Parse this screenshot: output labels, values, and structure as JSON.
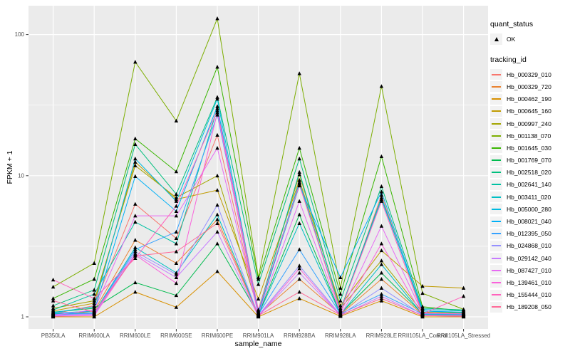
{
  "theme": {
    "background": "#FFFFFF",
    "panel_background": "#EBEBEB",
    "grid_color": "#FFFFFF",
    "tick_color": "#333333",
    "tick_label_color": "#4D4D4D",
    "marker_color": "#000000",
    "legend_key_background": "#F2F2F2"
  },
  "legend": {
    "quant_status": {
      "title": "quant_status",
      "items": [
        {
          "label": "OK",
          "marker": "triangle-up"
        }
      ]
    },
    "tracking_id": {
      "title": "tracking_id"
    }
  },
  "chart_data": {
    "type": "line",
    "title": "",
    "xlabel": "sample_name",
    "ylabel": "FPKM + 1",
    "y_scale": "log10",
    "y_ticks": [
      1,
      10,
      100
    ],
    "y_minor_ticks": [
      3.1623,
      31.623
    ],
    "ylim": [
      0.83,
      160
    ],
    "grid": true,
    "legend_position": "right",
    "marker": "triangle-up",
    "categories": [
      "PB350LA",
      "RRIM600LA",
      "RRIM600LE",
      "RRIM600SE",
      "RRIM600PE",
      "RRIM901LA",
      "RRIM928BA",
      "RRIM928LA",
      "RRIM928LE",
      "RRII105LA_Control",
      "RRII105LA_Stressed"
    ],
    "series": [
      {
        "name": "Hb_000329_010",
        "color": "#F8766D",
        "values": [
          1.05,
          1.2,
          6.3,
          3.6,
          19.4,
          1.06,
          8.8,
          1.08,
          7.3,
          1.07,
          1.05
        ]
      },
      {
        "name": "Hb_000329_720",
        "color": "#EA8331",
        "values": [
          1.02,
          1.1,
          3.5,
          2.4,
          4.9,
          1.03,
          1.85,
          1.04,
          1.85,
          1.04,
          1.03
        ]
      },
      {
        "name": "Hb_000462_190",
        "color": "#D89000",
        "values": [
          1.0,
          1.0,
          1.5,
          1.17,
          2.1,
          1.0,
          1.35,
          1.01,
          1.3,
          1.0,
          1.0
        ]
      },
      {
        "name": "Hb_000645_160",
        "color": "#C09B00",
        "values": [
          1.1,
          1.25,
          12.5,
          6.8,
          7.9,
          1.34,
          9.3,
          1.2,
          2.95,
          1.65,
          1.6
        ]
      },
      {
        "name": "Hb_000997_240",
        "color": "#A3A500",
        "values": [
          1.15,
          1.3,
          11.8,
          7.0,
          10.0,
          1.12,
          10.2,
          1.15,
          2.5,
          1.08,
          1.06
        ]
      },
      {
        "name": "Hb_001138_070",
        "color": "#7CAE00",
        "values": [
          1.63,
          2.4,
          64.0,
          24.5,
          130.0,
          1.9,
          53.0,
          1.6,
          43.0,
          1.47,
          1.13
        ]
      },
      {
        "name": "Hb_001645_030",
        "color": "#39B600",
        "values": [
          1.35,
          1.85,
          18.3,
          10.7,
          59.0,
          1.85,
          15.7,
          1.45,
          13.7,
          1.18,
          1.1
        ]
      },
      {
        "name": "Hb_001769_070",
        "color": "#00BB4E",
        "values": [
          1.08,
          1.15,
          1.75,
          1.42,
          3.3,
          1.04,
          5.3,
          1.05,
          2.05,
          1.05,
          1.04
        ]
      },
      {
        "name": "Hb_002518_020",
        "color": "#00BF7D",
        "values": [
          1.2,
          1.55,
          16.7,
          7.4,
          36.0,
          1.7,
          13.2,
          1.3,
          8.4,
          1.15,
          1.12
        ]
      },
      {
        "name": "Hb_002641_140",
        "color": "#00C1A3",
        "values": [
          1.12,
          1.45,
          4.7,
          3.3,
          30.0,
          1.1,
          10.6,
          1.12,
          7.0,
          1.1,
          1.07
        ]
      },
      {
        "name": "Hb_003411_020",
        "color": "#00BFC4",
        "values": [
          1.05,
          1.07,
          3.1,
          2.05,
          5.3,
          1.03,
          4.6,
          1.04,
          2.35,
          1.04,
          1.03
        ]
      },
      {
        "name": "Hb_005000_280",
        "color": "#00BAE0",
        "values": [
          1.07,
          1.18,
          13.2,
          6.6,
          35.0,
          1.08,
          9.0,
          1.1,
          6.8,
          1.13,
          1.1
        ]
      },
      {
        "name": "Hb_008021_040",
        "color": "#00B0F6",
        "values": [
          1.06,
          1.1,
          9.9,
          5.6,
          31.0,
          1.07,
          8.5,
          1.9,
          7.7,
          1.1,
          1.08
        ]
      },
      {
        "name": "Hb_012395_050",
        "color": "#35A2FF",
        "values": [
          1.04,
          1.06,
          3.0,
          4.0,
          27.0,
          1.04,
          3.0,
          1.05,
          1.45,
          1.05,
          1.04
        ]
      },
      {
        "name": "Hb_024868_010",
        "color": "#9590FF",
        "values": [
          1.03,
          1.05,
          2.9,
          2.0,
          6.2,
          1.02,
          2.3,
          1.03,
          1.6,
          1.03,
          1.02
        ]
      },
      {
        "name": "Hb_029142_040",
        "color": "#C77CFF",
        "values": [
          1.02,
          1.04,
          2.8,
          1.9,
          4.0,
          1.01,
          2.05,
          1.02,
          1.4,
          1.02,
          1.01
        ]
      },
      {
        "name": "Hb_087427_010",
        "color": "#E76BF3",
        "values": [
          1.03,
          1.12,
          5.2,
          5.2,
          15.7,
          1.05,
          6.6,
          1.06,
          4.4,
          1.06,
          1.05
        ]
      },
      {
        "name": "Hb_139461_010",
        "color": "#FA62DB",
        "values": [
          1.01,
          1.02,
          2.75,
          1.73,
          28.0,
          1.01,
          2.2,
          1.02,
          3.3,
          1.02,
          1.01
        ]
      },
      {
        "name": "Hb_155444_010",
        "color": "#FF62BC",
        "values": [
          1.83,
          1.35,
          2.6,
          6.1,
          29.0,
          1.12,
          8.6,
          1.1,
          6.6,
          1.05,
          1.4
        ]
      },
      {
        "name": "Hb_189208_050",
        "color": "#FF6A98",
        "values": [
          1.3,
          1.08,
          2.7,
          2.9,
          4.6,
          1.02,
          1.5,
          1.03,
          1.35,
          1.02,
          1.02
        ]
      }
    ]
  }
}
